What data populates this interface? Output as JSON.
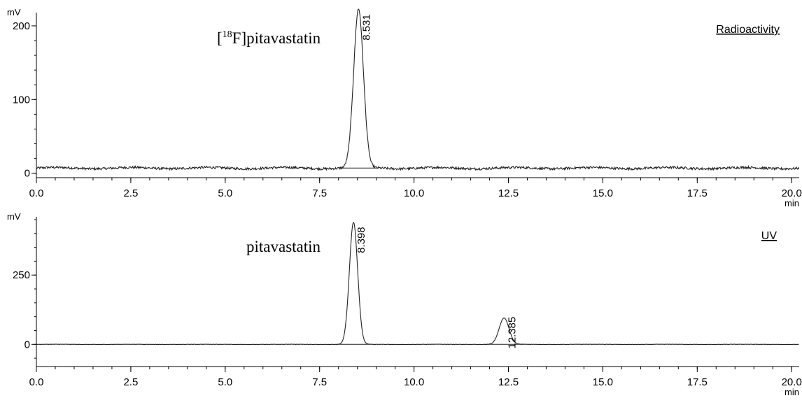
{
  "chart_data": [
    {
      "type": "line",
      "ylabel": "mV",
      "xunit": "min",
      "xlim": [
        0,
        20.2
      ],
      "ylim": [
        -6,
        218
      ],
      "x_ticks": [
        0,
        2.5,
        5,
        7.5,
        10,
        12.5,
        15,
        17.5,
        20
      ],
      "x_tick_labels": [
        "0.0",
        "2.5",
        "5.0",
        "7.5",
        "10.0",
        "12.5",
        "15.0",
        "17.5",
        "20.0"
      ],
      "y_ticks": [
        0,
        100,
        200
      ],
      "y_tick_labels": [
        "0",
        "100",
        "200"
      ],
      "legend": "Radioactivity",
      "compound_label": {
        "prefix": "[",
        "sup": "18",
        "main": "F]pitavastatin"
      },
      "baseline": 7,
      "peaks": [
        {
          "rt": 8.531,
          "label": "8.531",
          "height": 215,
          "sigma": 0.13
        }
      ]
    },
    {
      "type": "line",
      "ylabel": "mV",
      "xunit": "min",
      "xlim": [
        0,
        20.2
      ],
      "ylim": [
        -80,
        460
      ],
      "x_ticks": [
        0,
        2.5,
        5,
        7.5,
        10,
        12.5,
        15,
        17.5,
        20
      ],
      "x_tick_labels": [
        "0.0",
        "2.5",
        "5.0",
        "7.5",
        "10.0",
        "12.5",
        "15.0",
        "17.5",
        "20.0"
      ],
      "y_ticks": [
        0,
        250
      ],
      "y_tick_labels": [
        "0",
        "250"
      ],
      "legend": "UV",
      "compound_label": {
        "prefix": "",
        "sup": "",
        "main": "pitavastatin"
      },
      "baseline": 0,
      "peaks": [
        {
          "rt": 8.398,
          "label": "8.398",
          "height": 440,
          "sigma": 0.11
        },
        {
          "rt": 12.385,
          "label": "12.385",
          "height": 95,
          "sigma": 0.13
        }
      ]
    }
  ]
}
